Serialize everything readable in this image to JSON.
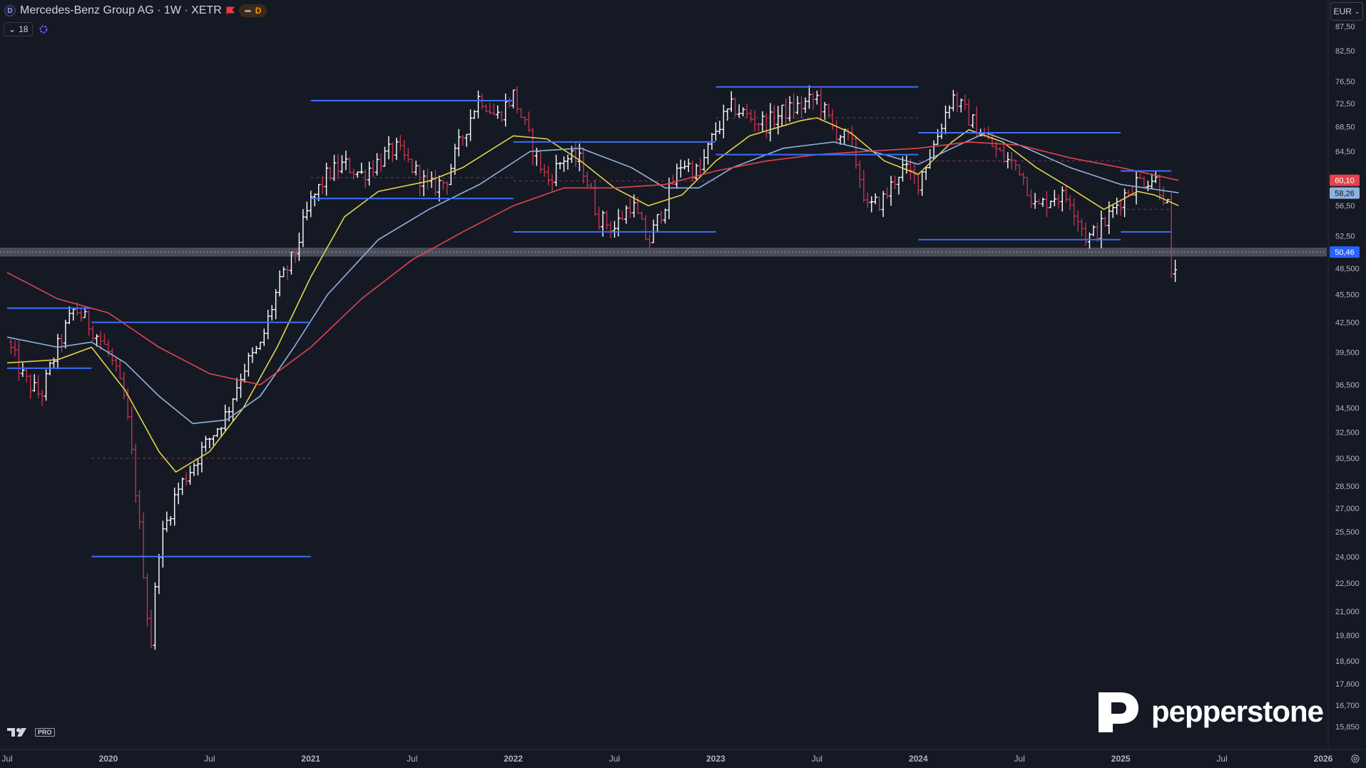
{
  "header": {
    "symbol_badge": "D",
    "title": "Mercedes-Benz Group AG · 1W · XETR",
    "flag_color": "#f23645",
    "d_label": "D",
    "indicator_count": "18"
  },
  "currency": "EUR",
  "brand": {
    "name": "pepperstone"
  },
  "logo_text": "PRO",
  "colors": {
    "background": "#151924",
    "up": "#ffffff",
    "down": "#c2334d",
    "ma_fast": "#e3d349",
    "ma_mid": "#8fb3e0",
    "ma_slow": "#e3434d",
    "level_line": "#3d6ff5",
    "price_badge": "#2962ff"
  },
  "chart_data": {
    "type": "ohlc",
    "scale": "log",
    "interval": "1W",
    "ylim": [
      15.0,
      90.0
    ],
    "price_ticks": [
      "87,50",
      "82,50",
      "76,50",
      "72,50",
      "68,50",
      "64,50",
      "60,10",
      "58,26",
      "56,50",
      "52,50",
      "50,46",
      "48,500",
      "45,500",
      "42,500",
      "39,500",
      "36,500",
      "34,500",
      "32,500",
      "30,500",
      "28,500",
      "27,000",
      "25,500",
      "24,000",
      "22,500",
      "21,000",
      "19,800",
      "18,600",
      "17,600",
      "16,700",
      "15,850"
    ],
    "time_ticks": [
      {
        "date": "2019-07",
        "label": "Jul"
      },
      {
        "date": "2020-01",
        "label": "2020"
      },
      {
        "date": "2020-07",
        "label": "Jul"
      },
      {
        "date": "2021-01",
        "label": "2021"
      },
      {
        "date": "2021-07",
        "label": "Jul"
      },
      {
        "date": "2022-01",
        "label": "2022"
      },
      {
        "date": "2022-07",
        "label": "Jul"
      },
      {
        "date": "2023-01",
        "label": "2023"
      },
      {
        "date": "2023-07",
        "label": "Jul"
      },
      {
        "date": "2024-01",
        "label": "2024"
      },
      {
        "date": "2024-07",
        "label": "Jul"
      },
      {
        "date": "2025-01",
        "label": "2025"
      },
      {
        "date": "2025-07",
        "label": "Jul"
      },
      {
        "date": "2026-01",
        "label": "2026"
      }
    ],
    "xlim": [
      "2019-07",
      "2026-01"
    ],
    "price_path": [
      [
        "2019-07",
        40.5
      ],
      [
        "2019-08",
        37.0
      ],
      [
        "2019-09",
        35.5
      ],
      [
        "2019-10",
        40.0
      ],
      [
        "2019-11",
        44.0
      ],
      [
        "2019-12",
        42.0
      ],
      [
        "2020-01",
        39.5
      ],
      [
        "2020-02",
        35.0
      ],
      [
        "2020-03",
        24.0
      ],
      [
        "2020-03-16",
        19.0
      ],
      [
        "2020-04",
        24.5
      ],
      [
        "2020-05",
        28.0
      ],
      [
        "2020-06",
        30.0
      ],
      [
        "2020-07",
        32.0
      ],
      [
        "2020-08",
        34.0
      ],
      [
        "2020-09",
        38.0
      ],
      [
        "2020-10",
        40.0
      ],
      [
        "2020-11",
        46.0
      ],
      [
        "2020-12",
        50.0
      ],
      [
        "2021-01",
        57.0
      ],
      [
        "2021-02",
        61.0
      ],
      [
        "2021-03",
        62.5
      ],
      [
        "2021-04",
        61.0
      ],
      [
        "2021-05",
        63.0
      ],
      [
        "2021-06",
        65.0
      ],
      [
        "2021-07",
        62.0
      ],
      [
        "2021-08",
        59.0
      ],
      [
        "2021-09",
        60.0
      ],
      [
        "2021-10",
        67.0
      ],
      [
        "2021-11",
        74.0
      ],
      [
        "2021-12",
        70.0
      ],
      [
        "2022-01",
        74.0
      ],
      [
        "2022-02",
        66.0
      ],
      [
        "2022-03",
        60.0
      ],
      [
        "2022-04",
        63.5
      ],
      [
        "2022-05",
        63.0
      ],
      [
        "2022-06",
        55.0
      ],
      [
        "2022-07",
        53.5
      ],
      [
        "2022-08",
        57.0
      ],
      [
        "2022-09",
        51.5
      ],
      [
        "2022-10",
        57.0
      ],
      [
        "2022-11",
        63.0
      ],
      [
        "2022-12",
        61.0
      ],
      [
        "2023-01",
        68.0
      ],
      [
        "2023-02",
        72.0
      ],
      [
        "2023-03",
        70.0
      ],
      [
        "2023-04",
        69.0
      ],
      [
        "2023-05",
        71.0
      ],
      [
        "2023-06",
        72.0
      ],
      [
        "2023-07",
        73.5
      ],
      [
        "2023-08",
        68.0
      ],
      [
        "2023-09",
        66.0
      ],
      [
        "2023-10",
        56.0
      ],
      [
        "2023-11",
        57.5
      ],
      [
        "2023-12",
        62.0
      ],
      [
        "2024-01",
        60.0
      ],
      [
        "2024-02",
        66.0
      ],
      [
        "2024-03",
        74.0
      ],
      [
        "2024-04",
        70.0
      ],
      [
        "2024-05",
        66.5
      ],
      [
        "2024-06",
        63.5
      ],
      [
        "2024-07",
        62.0
      ],
      [
        "2024-08",
        56.0
      ],
      [
        "2024-09",
        58.0
      ],
      [
        "2024-10",
        57.5
      ],
      [
        "2024-11",
        52.0
      ],
      [
        "2024-12",
        54.0
      ],
      [
        "2025-01",
        57.5
      ],
      [
        "2025-02",
        60.0
      ],
      [
        "2025-03",
        60.5
      ],
      [
        "2025-03-24",
        57.0
      ],
      [
        "2025-04",
        47.0
      ],
      [
        "2025-04-14",
        50.46
      ]
    ],
    "moving_averages": [
      {
        "key": "ma_fast",
        "path": [
          [
            "2019-07",
            38.5
          ],
          [
            "2019-10",
            38.8
          ],
          [
            "2019-12",
            40.0
          ],
          [
            "2020-02",
            36.0
          ],
          [
            "2020-04",
            31.0
          ],
          [
            "2020-05",
            29.5
          ],
          [
            "2020-07",
            31.0
          ],
          [
            "2020-09",
            34.5
          ],
          [
            "2020-11",
            40.0
          ],
          [
            "2021-01",
            47.5
          ],
          [
            "2021-03",
            55.0
          ],
          [
            "2021-05",
            58.5
          ],
          [
            "2021-08",
            60.0
          ],
          [
            "2021-10",
            62.0
          ],
          [
            "2022-01",
            67.0
          ],
          [
            "2022-03",
            66.5
          ],
          [
            "2022-05",
            63.0
          ],
          [
            "2022-07",
            59.0
          ],
          [
            "2022-09",
            56.5
          ],
          [
            "2022-11",
            58.0
          ],
          [
            "2023-01",
            63.0
          ],
          [
            "2023-03",
            67.0
          ],
          [
            "2023-06",
            69.5
          ],
          [
            "2023-07",
            70.0
          ],
          [
            "2023-09",
            67.5
          ],
          [
            "2023-11",
            63.0
          ],
          [
            "2024-01",
            61.0
          ],
          [
            "2024-03",
            66.0
          ],
          [
            "2024-04",
            68.0
          ],
          [
            "2024-06",
            66.0
          ],
          [
            "2024-08",
            62.0
          ],
          [
            "2024-10",
            59.0
          ],
          [
            "2024-12",
            56.0
          ],
          [
            "2025-02",
            58.5
          ],
          [
            "2025-03",
            58.0
          ],
          [
            "2025-04-14",
            56.5
          ]
        ]
      },
      {
        "key": "ma_mid",
        "path": [
          [
            "2019-07",
            41.0
          ],
          [
            "2019-10",
            40.0
          ],
          [
            "2019-12",
            40.5
          ],
          [
            "2020-02",
            38.5
          ],
          [
            "2020-04",
            35.5
          ],
          [
            "2020-06",
            33.2
          ],
          [
            "2020-08",
            33.5
          ],
          [
            "2020-10",
            35.5
          ],
          [
            "2020-12",
            40.0
          ],
          [
            "2021-02",
            45.5
          ],
          [
            "2021-05",
            52.0
          ],
          [
            "2021-08",
            56.0
          ],
          [
            "2021-11",
            59.5
          ],
          [
            "2022-02",
            64.5
          ],
          [
            "2022-05",
            65.0
          ],
          [
            "2022-08",
            62.0
          ],
          [
            "2022-10",
            59.0
          ],
          [
            "2022-12",
            59.0
          ],
          [
            "2023-02",
            62.0
          ],
          [
            "2023-05",
            65.0
          ],
          [
            "2023-08",
            66.0
          ],
          [
            "2023-11",
            64.0
          ],
          [
            "2024-01",
            62.5
          ],
          [
            "2024-03",
            65.0
          ],
          [
            "2024-05",
            67.5
          ],
          [
            "2024-07",
            65.5
          ],
          [
            "2024-10",
            62.0
          ],
          [
            "2025-01",
            59.5
          ],
          [
            "2025-04-14",
            58.3
          ]
        ]
      },
      {
        "key": "ma_slow",
        "path": [
          [
            "2019-07",
            48.0
          ],
          [
            "2019-10",
            45.0
          ],
          [
            "2020-01",
            43.5
          ],
          [
            "2020-04",
            40.0
          ],
          [
            "2020-07",
            37.5
          ],
          [
            "2020-10",
            36.5
          ],
          [
            "2021-01",
            40.0
          ],
          [
            "2021-04",
            45.0
          ],
          [
            "2021-07",
            49.5
          ],
          [
            "2021-10",
            53.0
          ],
          [
            "2022-01",
            56.5
          ],
          [
            "2022-04",
            59.0
          ],
          [
            "2022-07",
            59.0
          ],
          [
            "2022-10",
            59.5
          ],
          [
            "2023-01",
            61.5
          ],
          [
            "2023-04",
            63.0
          ],
          [
            "2023-07",
            64.0
          ],
          [
            "2023-10",
            64.5
          ],
          [
            "2024-01",
            65.0
          ],
          [
            "2024-04",
            66.0
          ],
          [
            "2024-07",
            65.5
          ],
          [
            "2024-10",
            63.5
          ],
          [
            "2025-01",
            62.0
          ],
          [
            "2025-04-14",
            60.1
          ]
        ]
      }
    ],
    "levels": [
      {
        "from": "2019-07",
        "to": "2019-12",
        "price": 44.0
      },
      {
        "from": "2019-07",
        "to": "2019-12",
        "price": 38.0
      },
      {
        "from": "2019-12",
        "to": "2021-01",
        "price": 42.5
      },
      {
        "from": "2019-12",
        "to": "2021-01",
        "price": 24.0
      },
      {
        "from": "2021-01",
        "to": "2022-01",
        "price": 73.0
      },
      {
        "from": "2021-01",
        "to": "2022-01",
        "price": 57.5
      },
      {
        "from": "2022-01",
        "to": "2023-01",
        "price": 66.0
      },
      {
        "from": "2022-01",
        "to": "2023-01",
        "price": 53.0
      },
      {
        "from": "2023-01",
        "to": "2024-01",
        "price": 75.5
      },
      {
        "from": "2023-01",
        "to": "2024-01",
        "price": 64.0
      },
      {
        "from": "2024-01",
        "to": "2025-01",
        "price": 67.5
      },
      {
        "from": "2024-01",
        "to": "2025-01",
        "price": 52.0
      },
      {
        "from": "2025-01",
        "to": "2025-04",
        "price": 61.5
      },
      {
        "from": "2025-01",
        "to": "2025-04",
        "price": 53.0
      }
    ],
    "dashed_levels": [
      {
        "from": "2019-12",
        "to": "2021-01",
        "price": 30.5
      },
      {
        "from": "2021-01",
        "to": "2022-01",
        "price": 60.5
      },
      {
        "from": "2022-01",
        "to": "2023-01",
        "price": 60.0
      },
      {
        "from": "2023-01",
        "to": "2024-01",
        "price": 70.0
      },
      {
        "from": "2024-01",
        "to": "2025-01",
        "price": 63.0
      },
      {
        "from": "2025-01",
        "to": "2025-04",
        "price": 56.0
      }
    ],
    "current_price": 50.46,
    "zone": [
      49.9,
      51.0
    ],
    "badges": [
      {
        "price": 60.1,
        "label": "60,10",
        "color": "#e3434d"
      },
      {
        "price": 58.26,
        "label": "58,26",
        "color": "#8fb3e0"
      },
      {
        "price": 50.46,
        "label": "50,46",
        "color": "#2962ff"
      }
    ]
  }
}
